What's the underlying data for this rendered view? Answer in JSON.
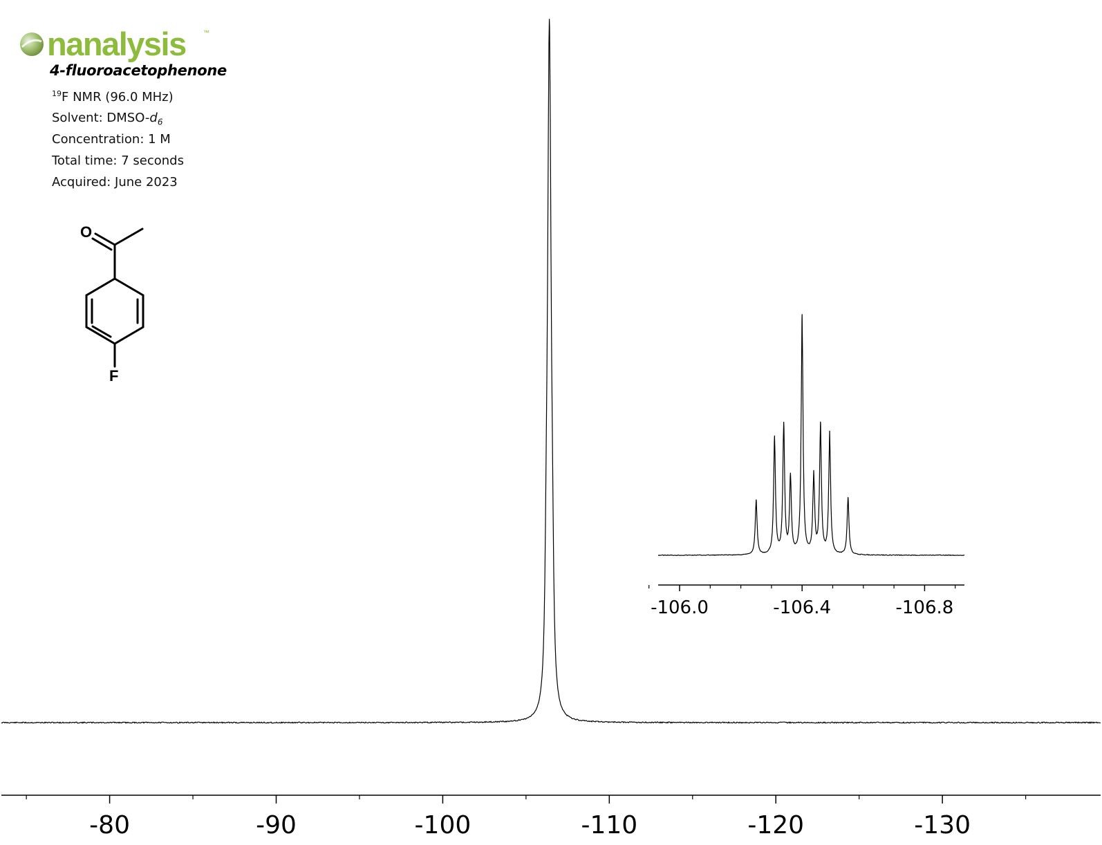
{
  "logo": {
    "text": "nanalysis",
    "tm": "™"
  },
  "compound": {
    "name": "4-fluoroacetophenone"
  },
  "info": {
    "nucleus_sup": "19",
    "nmr": "F NMR (96.0 MHz)",
    "solvent_prefix": "Solvent: DMSO-",
    "solvent_d": "d",
    "solvent_sub": "6",
    "concentration": "Concentration: 1 M",
    "total_time": "Total time: 7 seconds",
    "acquired": "Acquired: June 2023"
  },
  "structure": {
    "oxygen": "O",
    "fluorine": "F"
  },
  "colors": {
    "logo": "#8dbb3c",
    "trace": "#000000"
  },
  "chart_data": [
    {
      "type": "line",
      "title": "",
      "xlabel": "",
      "ylabel": "",
      "x_unit": "ppm",
      "xlim": [
        -73.5,
        -139.5
      ],
      "x_reversed": true,
      "x_tick_labels": [
        "-80",
        "-90",
        "-100",
        "-110",
        "-120",
        "-130"
      ],
      "x_ticks": [
        -80,
        -90,
        -100,
        -110,
        -120,
        -130
      ],
      "x_minor_ticks": [
        -75,
        -85,
        -95,
        -105,
        -115,
        -125,
        -135
      ],
      "ylim": [
        0,
        1
      ],
      "peaks": [
        {
          "x": -106.4,
          "height": 1.0
        },
        {
          "x": -106.34,
          "height": 0.55
        },
        {
          "x": -106.46,
          "height": 0.58
        },
        {
          "x": -106.22,
          "height": 0.3
        },
        {
          "x": -106.58,
          "height": 0.3
        }
      ],
      "grid": false,
      "legend": "none"
    },
    {
      "type": "line",
      "title": "",
      "xlabel": "",
      "ylabel": "",
      "x_unit": "ppm",
      "xlim": [
        -105.93,
        -106.93
      ],
      "x_reversed": true,
      "x_tick_labels": [
        "-106.0",
        "-106.4",
        "-106.8"
      ],
      "x_ticks": [
        -106.0,
        -106.4,
        -106.8
      ],
      "x_minor_ticks": [
        -105.9,
        -106.1,
        -106.2,
        -106.3,
        -106.5,
        -106.6,
        -106.7,
        -106.9
      ],
      "ylim": [
        0,
        1
      ],
      "peaks": [
        {
          "x": -106.25,
          "height": 0.23
        },
        {
          "x": -106.31,
          "height": 0.49
        },
        {
          "x": -106.34,
          "height": 0.54
        },
        {
          "x": -106.362,
          "height": 0.32
        },
        {
          "x": -106.4,
          "height": 1.0
        },
        {
          "x": -106.438,
          "height": 0.33
        },
        {
          "x": -106.46,
          "height": 0.54
        },
        {
          "x": -106.49,
          "height": 0.51
        },
        {
          "x": -106.55,
          "height": 0.24
        }
      ],
      "grid": false,
      "legend": "none"
    }
  ]
}
